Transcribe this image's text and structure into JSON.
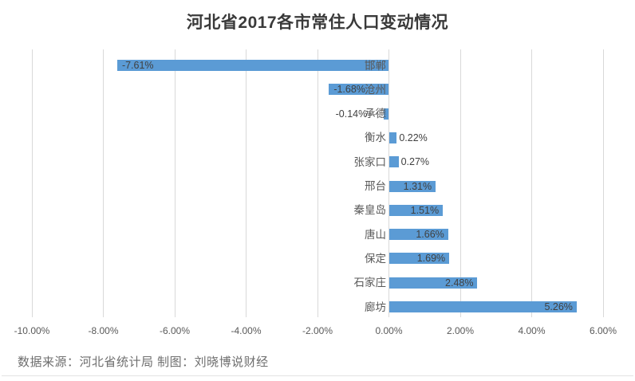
{
  "title": "河北省2017各市常住人口变动情况",
  "source_note": "数据来源：河北省统计局 制图：刘晓博说财经",
  "colors": {
    "bar": "#5b9bd5",
    "gridline": "#d9d9d9",
    "axis_label": "#595959",
    "category_label": "#595959",
    "data_label": "#404040",
    "title_text": "#3a3a3a",
    "source_text": "#6e6e6e",
    "leader_line": "#9a9a9a"
  },
  "chart_data": {
    "type": "bar",
    "orientation": "horizontal",
    "title": "河北省2017各市常住人口变动情况",
    "categories": [
      "邯郸",
      "沧州",
      "承德",
      "衡水",
      "张家口",
      "邢台",
      "秦皇岛",
      "唐山",
      "保定",
      "石家庄",
      "廊坊"
    ],
    "values": [
      -7.61,
      -1.68,
      -0.14,
      0.22,
      0.27,
      1.31,
      1.51,
      1.66,
      1.69,
      2.48,
      5.26
    ],
    "data_labels": [
      "-7.61%",
      "-1.68%",
      "-0.14%",
      "0.22%",
      "0.27%",
      "1.31%",
      "1.51%",
      "1.66%",
      "1.69%",
      "2.48%",
      "5.26%"
    ],
    "x_axis": {
      "min": -10,
      "max": 6,
      "ticks": [
        -10,
        -8,
        -6,
        -4,
        -2,
        0,
        2,
        4,
        6
      ],
      "tick_labels": [
        "-10.00%",
        "-8.00%",
        "-6.00%",
        "-4.00%",
        "-2.00%",
        "0.00%",
        "2.00%",
        "4.00%",
        "6.00%"
      ],
      "format": "percent"
    },
    "xlabel": "",
    "ylabel": "",
    "grid": true,
    "legend": false,
    "data_label_position": "inside_end_or_outside_if_small"
  }
}
